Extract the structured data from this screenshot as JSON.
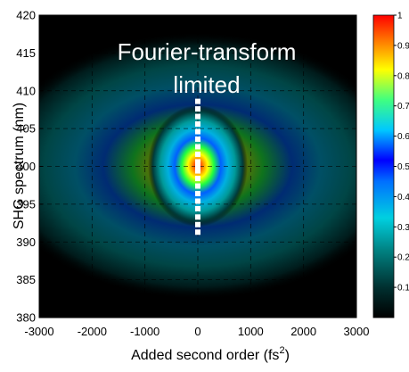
{
  "chart_data": {
    "type": "heatmap",
    "title": "",
    "xlabel": "Added second order (fs",
    "xlabel_superscript": "2",
    "xlabel_close": ")",
    "ylabel": "SHG spectrum (nm)",
    "xlim": [
      -3000,
      3000
    ],
    "ylim": [
      380,
      420
    ],
    "xticks": [
      -3000,
      -2000,
      -1000,
      0,
      1000,
      2000,
      3000
    ],
    "xtick_labels": [
      "-3000",
      "-2000",
      "-1000",
      "0",
      "1000",
      "2000",
      "3000"
    ],
    "yticks": [
      380,
      385,
      390,
      395,
      400,
      405,
      410,
      415,
      420
    ],
    "ytick_labels": [
      "380",
      "385",
      "390",
      "395",
      "400",
      "405",
      "410",
      "415",
      "420"
    ],
    "grid": true,
    "grid_x": [
      -2000,
      -1000,
      0,
      1000,
      2000
    ],
    "grid_y": [
      385,
      390,
      395,
      400,
      405,
      410,
      415
    ],
    "colormap": "jet",
    "colorbar": {
      "range": [
        0,
        1
      ],
      "tick_values": [
        0.1,
        0.2,
        0.3,
        0.4,
        0.5,
        0.6,
        0.7,
        0.8,
        0.9,
        1
      ],
      "tick_labels": [
        "0.1",
        "0.2",
        "0.3",
        "0.4",
        "0.5",
        "0.6",
        "0.7",
        "0.8",
        "0.9",
        "1"
      ],
      "placement": "right"
    },
    "peak": {
      "x": 0,
      "y": 400,
      "value": 1
    },
    "annotation_lines": [
      "Fourier-transform",
      "limited"
    ],
    "annotation_color": "#ffffff",
    "marker_series": {
      "style": "white-square",
      "x": [
        0,
        0,
        0,
        0,
        0,
        0,
        0,
        0,
        0,
        0,
        0,
        0,
        0,
        0,
        0,
        0,
        0,
        0,
        0
      ],
      "y": [
        391.3,
        392.3,
        393.3,
        394.4,
        395.4,
        396.4,
        397.4,
        398.4,
        399.4,
        400.0,
        400.6,
        401.6,
        402.6,
        403.6,
        404.6,
        405.6,
        406.6,
        407.6,
        408.6
      ]
    }
  }
}
